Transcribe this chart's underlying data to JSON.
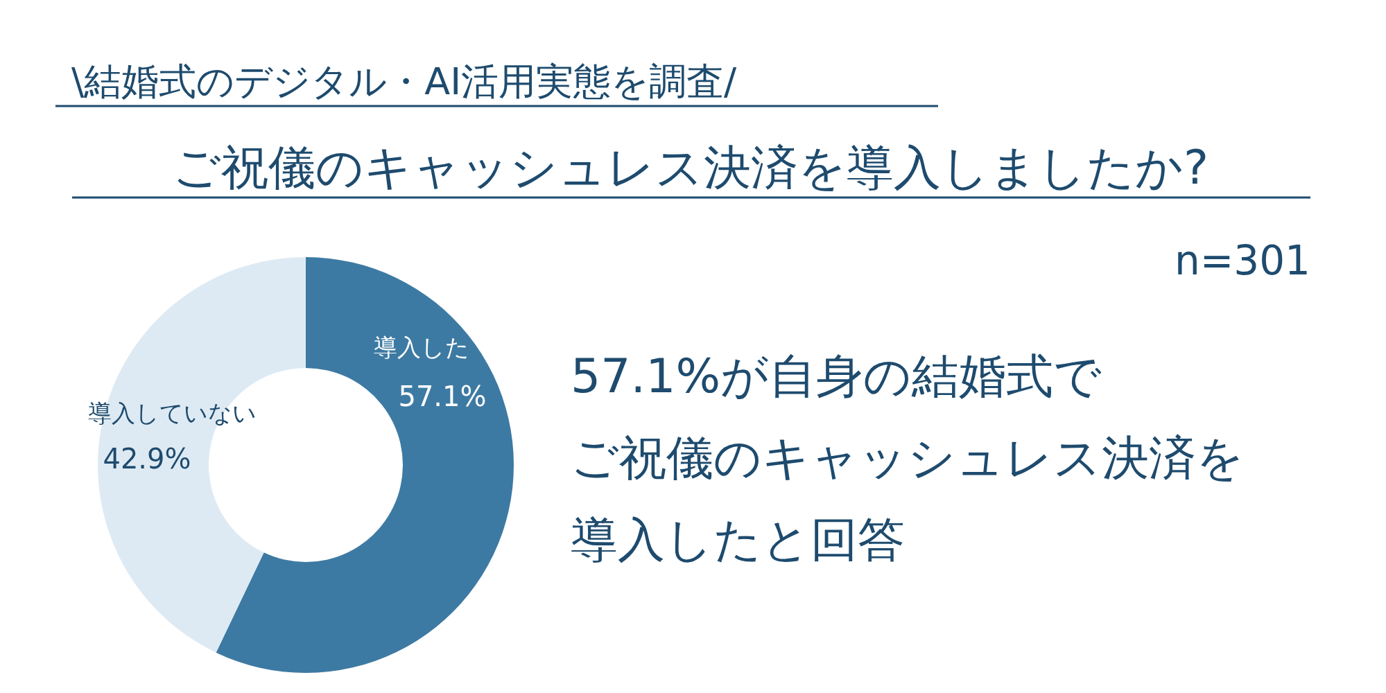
{
  "chart_data": {
    "type": "donut",
    "subtitle": "\\結婚式のデジタル・AI活用実態を調査/",
    "title": "ご祝儀のキャッシュレス決済を導入しましたか?",
    "categories": [
      "導入した",
      "導入していない"
    ],
    "values": [
      57.1,
      42.9
    ],
    "colors": [
      "#3d7aa3",
      "#deeaf3"
    ],
    "value_labels": [
      "57.1%",
      "42.9%"
    ],
    "annotations": [
      "n=301",
      "57.1%が自身の結婚式で",
      "ご祝儀のキャッシュレス決済を",
      "導入したと回答"
    ]
  }
}
